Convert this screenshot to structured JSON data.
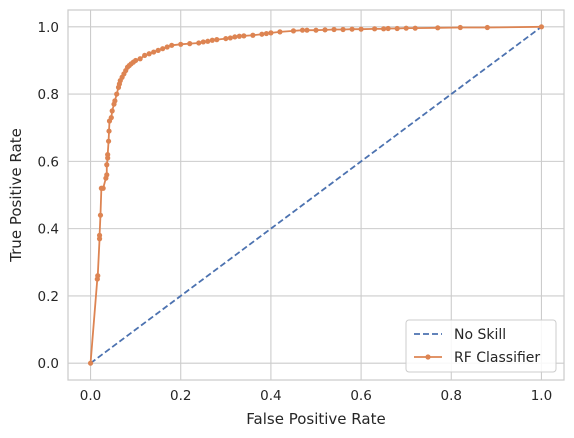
{
  "chart_data": {
    "type": "line",
    "xlabel": "False Positive Rate",
    "ylabel": "True Positive Rate",
    "xlim": [
      -0.05,
      1.05
    ],
    "ylim": [
      -0.05,
      1.05
    ],
    "x_ticks": [
      "0.0",
      "0.2",
      "0.4",
      "0.6",
      "0.8",
      "1.0"
    ],
    "y_ticks": [
      "0.0",
      "0.2",
      "0.4",
      "0.6",
      "0.8",
      "1.0"
    ],
    "grid": true,
    "legend_position": "lower-right",
    "series": [
      {
        "name": "No Skill",
        "style": "dashed",
        "marker": "none",
        "color": "#4c72b0",
        "x": [
          0,
          1
        ],
        "y": [
          0,
          1
        ]
      },
      {
        "name": "RF Classifier",
        "style": "solid",
        "marker": "circle",
        "color": "#dd8452",
        "x": [
          0.0,
          0.015,
          0.016,
          0.02,
          0.02,
          0.022,
          0.024,
          0.028,
          0.034,
          0.036,
          0.036,
          0.038,
          0.038,
          0.04,
          0.041,
          0.042,
          0.046,
          0.048,
          0.052,
          0.054,
          0.058,
          0.062,
          0.064,
          0.066,
          0.07,
          0.074,
          0.078,
          0.082,
          0.086,
          0.09,
          0.095,
          0.1,
          0.11,
          0.12,
          0.13,
          0.14,
          0.15,
          0.16,
          0.17,
          0.18,
          0.2,
          0.22,
          0.24,
          0.25,
          0.26,
          0.27,
          0.28,
          0.3,
          0.31,
          0.32,
          0.33,
          0.34,
          0.36,
          0.38,
          0.39,
          0.4,
          0.42,
          0.45,
          0.47,
          0.48,
          0.5,
          0.52,
          0.54,
          0.56,
          0.58,
          0.6,
          0.63,
          0.65,
          0.66,
          0.68,
          0.7,
          0.72,
          0.77,
          0.82,
          0.88,
          1.0
        ],
        "y": [
          0.0,
          0.25,
          0.26,
          0.37,
          0.38,
          0.44,
          0.52,
          0.52,
          0.55,
          0.56,
          0.59,
          0.61,
          0.62,
          0.66,
          0.69,
          0.72,
          0.73,
          0.75,
          0.77,
          0.78,
          0.8,
          0.82,
          0.83,
          0.84,
          0.85,
          0.86,
          0.87,
          0.88,
          0.885,
          0.89,
          0.895,
          0.9,
          0.905,
          0.915,
          0.92,
          0.925,
          0.93,
          0.935,
          0.94,
          0.945,
          0.948,
          0.95,
          0.952,
          0.955,
          0.957,
          0.96,
          0.962,
          0.965,
          0.967,
          0.97,
          0.972,
          0.973,
          0.975,
          0.978,
          0.98,
          0.982,
          0.985,
          0.988,
          0.99,
          0.99,
          0.99,
          0.991,
          0.992,
          0.992,
          0.993,
          0.993,
          0.994,
          0.994,
          0.995,
          0.995,
          0.996,
          0.996,
          0.997,
          0.998,
          0.998,
          1.0
        ]
      }
    ]
  }
}
